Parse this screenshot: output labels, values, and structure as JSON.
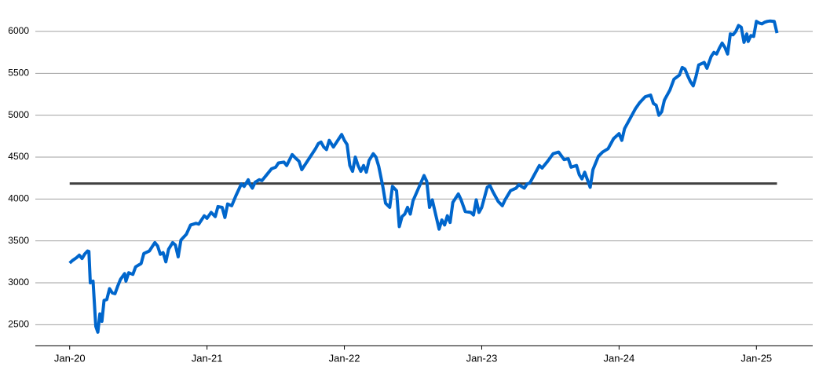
{
  "chart_data": {
    "type": "line",
    "xlim": [
      2019.75,
      2025.41
    ],
    "ylim": [
      2250,
      6375
    ],
    "xticks": [
      {
        "value": 2020,
        "label": "Jan-20"
      },
      {
        "value": 2021,
        "label": "Jan-21"
      },
      {
        "value": 2022,
        "label": "Jan-22"
      },
      {
        "value": 2023,
        "label": "Jan-23"
      },
      {
        "value": 2024,
        "label": "Jan-24"
      },
      {
        "value": 2025,
        "label": "Jan-25"
      }
    ],
    "yticks": [
      2500,
      3000,
      3500,
      4000,
      4500,
      5000,
      5500,
      6000
    ],
    "grid": true,
    "reference_line": {
      "value": 4185,
      "color": "#404040"
    },
    "series": [
      {
        "color": "#0066cc",
        "x": [
          2020.0,
          2020.02,
          2020.05,
          2020.07,
          2020.09,
          2020.11,
          2020.13,
          2020.14,
          2020.15,
          2020.17,
          2020.19,
          2020.205,
          2020.22,
          2020.235,
          2020.25,
          2020.27,
          2020.29,
          2020.31,
          2020.33,
          2020.35,
          2020.37,
          2020.4,
          2020.41,
          2020.43,
          2020.46,
          2020.48,
          2020.52,
          2020.54,
          2020.58,
          2020.62,
          2020.64,
          2020.66,
          2020.68,
          2020.7,
          2020.72,
          2020.75,
          2020.77,
          2020.79,
          2020.81,
          2020.85,
          2020.88,
          2020.92,
          2020.94,
          2020.96,
          2020.98,
          2021.0,
          2021.03,
          2021.06,
          2021.08,
          2021.11,
          2021.13,
          2021.15,
          2021.18,
          2021.21,
          2021.25,
          2021.27,
          2021.3,
          2021.31,
          2021.33,
          2021.35,
          2021.38,
          2021.4,
          2021.44,
          2021.47,
          2021.5,
          2021.52,
          2021.56,
          2021.58,
          2021.62,
          2021.65,
          2021.67,
          2021.69,
          2021.71,
          2021.75,
          2021.79,
          2021.81,
          2021.83,
          2021.85,
          2021.87,
          2021.89,
          2021.92,
          2021.96,
          2021.98,
          2022.0,
          2022.02,
          2022.04,
          2022.06,
          2022.08,
          2022.1,
          2022.12,
          2022.14,
          2022.16,
          2022.18,
          2022.21,
          2022.23,
          2022.25,
          2022.28,
          2022.3,
          2022.33,
          2022.35,
          2022.38,
          2022.4,
          2022.42,
          2022.44,
          2022.46,
          2022.48,
          2022.5,
          2022.54,
          2022.58,
          2022.6,
          2022.62,
          2022.64,
          2022.67,
          2022.69,
          2022.71,
          2022.73,
          2022.75,
          2022.77,
          2022.79,
          2022.83,
          2022.85,
          2022.88,
          2022.92,
          2022.94,
          2022.96,
          2022.98,
          2023.0,
          2023.04,
          2023.06,
          2023.08,
          2023.12,
          2023.15,
          2023.17,
          2023.21,
          2023.25,
          2023.27,
          2023.31,
          2023.33,
          2023.35,
          2023.38,
          2023.42,
          2023.44,
          2023.48,
          2023.52,
          2023.56,
          2023.6,
          2023.63,
          2023.65,
          2023.69,
          2023.71,
          2023.73,
          2023.75,
          2023.77,
          2023.79,
          2023.81,
          2023.85,
          2023.88,
          2023.92,
          2023.96,
          2024.0,
          2024.02,
          2024.04,
          2024.08,
          2024.12,
          2024.15,
          2024.19,
          2024.23,
          2024.25,
          2024.27,
          2024.29,
          2024.31,
          2024.33,
          2024.37,
          2024.4,
          2024.44,
          2024.46,
          2024.48,
          2024.5,
          2024.52,
          2024.54,
          2024.56,
          2024.58,
          2024.62,
          2024.64,
          2024.67,
          2024.69,
          2024.71,
          2024.73,
          2024.75,
          2024.77,
          2024.79,
          2024.81,
          2024.83,
          2024.85,
          2024.87,
          2024.89,
          2024.91,
          2024.93,
          2024.94,
          2024.96,
          2024.98,
          2025.0,
          2025.02,
          2025.04,
          2025.06,
          2025.08,
          2025.1,
          2025.13,
          2025.15
        ],
        "values": [
          3235,
          3265,
          3300,
          3330,
          3290,
          3345,
          3380,
          3375,
          3000,
          3020,
          2480,
          2410,
          2630,
          2540,
          2790,
          2800,
          2930,
          2880,
          2870,
          2960,
          3040,
          3110,
          3020,
          3120,
          3100,
          3190,
          3230,
          3350,
          3380,
          3480,
          3440,
          3340,
          3360,
          3250,
          3400,
          3480,
          3450,
          3310,
          3510,
          3580,
          3690,
          3710,
          3700,
          3750,
          3800,
          3770,
          3840,
          3790,
          3910,
          3900,
          3780,
          3940,
          3920,
          4040,
          4180,
          4150,
          4230,
          4180,
          4130,
          4200,
          4230,
          4220,
          4300,
          4360,
          4380,
          4430,
          4440,
          4400,
          4530,
          4480,
          4450,
          4350,
          4400,
          4500,
          4600,
          4660,
          4680,
          4620,
          4590,
          4700,
          4620,
          4720,
          4770,
          4700,
          4650,
          4400,
          4330,
          4500,
          4400,
          4330,
          4400,
          4320,
          4460,
          4540,
          4500,
          4390,
          4150,
          3950,
          3900,
          4150,
          4100,
          3670,
          3790,
          3820,
          3900,
          3820,
          3980,
          4130,
          4280,
          4210,
          3900,
          3990,
          3780,
          3640,
          3750,
          3690,
          3800,
          3720,
          3960,
          4060,
          3990,
          3850,
          3840,
          3810,
          3990,
          3840,
          3900,
          4140,
          4160,
          4090,
          3970,
          3920,
          3990,
          4100,
          4130,
          4170,
          4130,
          4180,
          4190,
          4280,
          4400,
          4370,
          4450,
          4540,
          4560,
          4470,
          4480,
          4380,
          4400,
          4290,
          4240,
          4320,
          4230,
          4140,
          4350,
          4510,
          4560,
          4600,
          4720,
          4780,
          4700,
          4840,
          4960,
          5080,
          5150,
          5220,
          5240,
          5140,
          5120,
          5000,
          5040,
          5180,
          5300,
          5430,
          5480,
          5570,
          5550,
          5470,
          5400,
          5350,
          5460,
          5600,
          5630,
          5560,
          5700,
          5750,
          5730,
          5800,
          5860,
          5810,
          5730,
          5970,
          5960,
          6000,
          6070,
          6050,
          5870,
          5970,
          5880,
          5950,
          5940,
          6120,
          6100,
          6090,
          6110,
          6120,
          6125,
          6120,
          5980
        ]
      }
    ]
  }
}
